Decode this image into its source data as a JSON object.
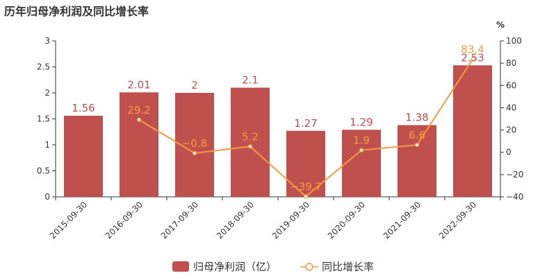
{
  "chart_data": {
    "type": "bar",
    "title": "历年归母净利润及同比增长率",
    "categories": [
      "2015-09-30",
      "2016-09-30",
      "2017-09-30",
      "2018-09-30",
      "2019-09-30",
      "2020-09-30",
      "2021-09-30",
      "2022-09-30"
    ],
    "series": [
      {
        "name": "归母净利润（亿）",
        "type": "bar",
        "axis": "left",
        "color": "#c0504d",
        "values": [
          1.56,
          2.01,
          2,
          2.1,
          1.27,
          1.29,
          1.38,
          2.53
        ],
        "labels": [
          "1.56",
          "2.01",
          "2",
          "2.1",
          "1.27",
          "1.29",
          "1.38",
          "2.53"
        ]
      },
      {
        "name": "同比增长率",
        "type": "line",
        "axis": "right",
        "color": "#f39c40",
        "values": [
          null,
          29.2,
          -0.8,
          5.2,
          -39.7,
          1.9,
          6.6,
          83.4
        ],
        "labels": [
          "",
          "29.2",
          "−0.8",
          "5.2",
          "−39.7",
          "1.9",
          "6.6",
          "83.4"
        ]
      }
    ],
    "y_left": {
      "min": 0,
      "max": 3,
      "ticks": [
        "0",
        "0.5",
        "1",
        "1.5",
        "2",
        "2.5",
        "3"
      ]
    },
    "y_right": {
      "min": -40,
      "max": 100,
      "unit": "%",
      "ticks": [
        "−40",
        "−20",
        "0",
        "20",
        "40",
        "60",
        "80",
        "100"
      ]
    },
    "legend_position": "bottom-center"
  }
}
